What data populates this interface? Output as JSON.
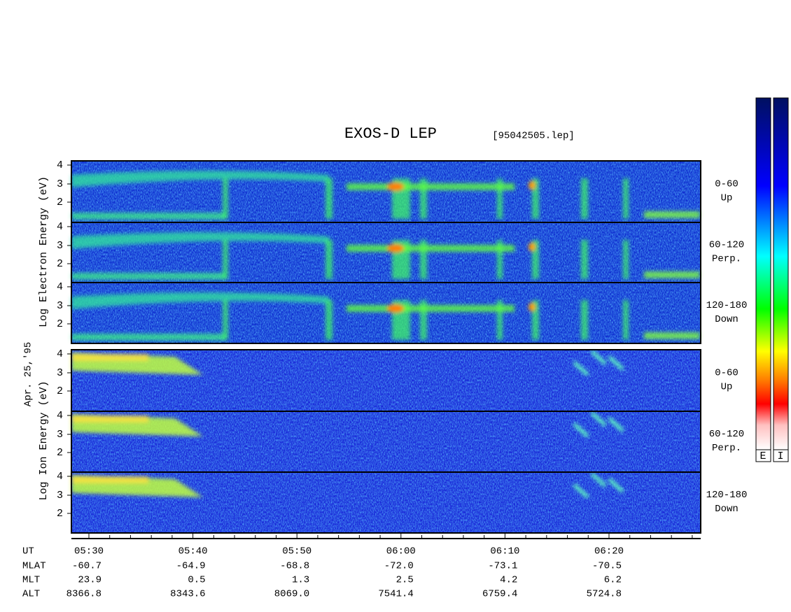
{
  "title": "EXOS-D LEP",
  "file": "[95042505.lep]",
  "date": "Apr. 25,'95",
  "electron_axis": "Log Electron Energy (eV)",
  "ion_axis": "Log Ion Energy (eV)",
  "panel_ticks": [
    "4",
    "3",
    "2"
  ],
  "pitch_angles": [
    {
      "range": "0-60",
      "dir": "Up"
    },
    {
      "range": "60-120",
      "dir": "Perp."
    },
    {
      "range": "120-180",
      "dir": "Down"
    }
  ],
  "colorbar_labels": [
    "E",
    "I"
  ],
  "orbit": {
    "labels": [
      "UT",
      "MLAT",
      "MLT",
      "ALT"
    ],
    "rows": [
      [
        "05:30",
        "05:40",
        "05:50",
        "06:00",
        "06:10",
        "06:20"
      ],
      [
        "-60.7",
        "-64.9",
        "-68.8",
        "-72.0",
        "-73.1",
        "-70.5"
      ],
      [
        "23.9",
        "0.5",
        "1.3",
        "2.5",
        "4.2",
        "6.2"
      ],
      [
        "8366.8",
        "8343.6",
        "8069.0",
        "7541.4",
        "6759.4",
        "5724.8"
      ]
    ]
  }
}
